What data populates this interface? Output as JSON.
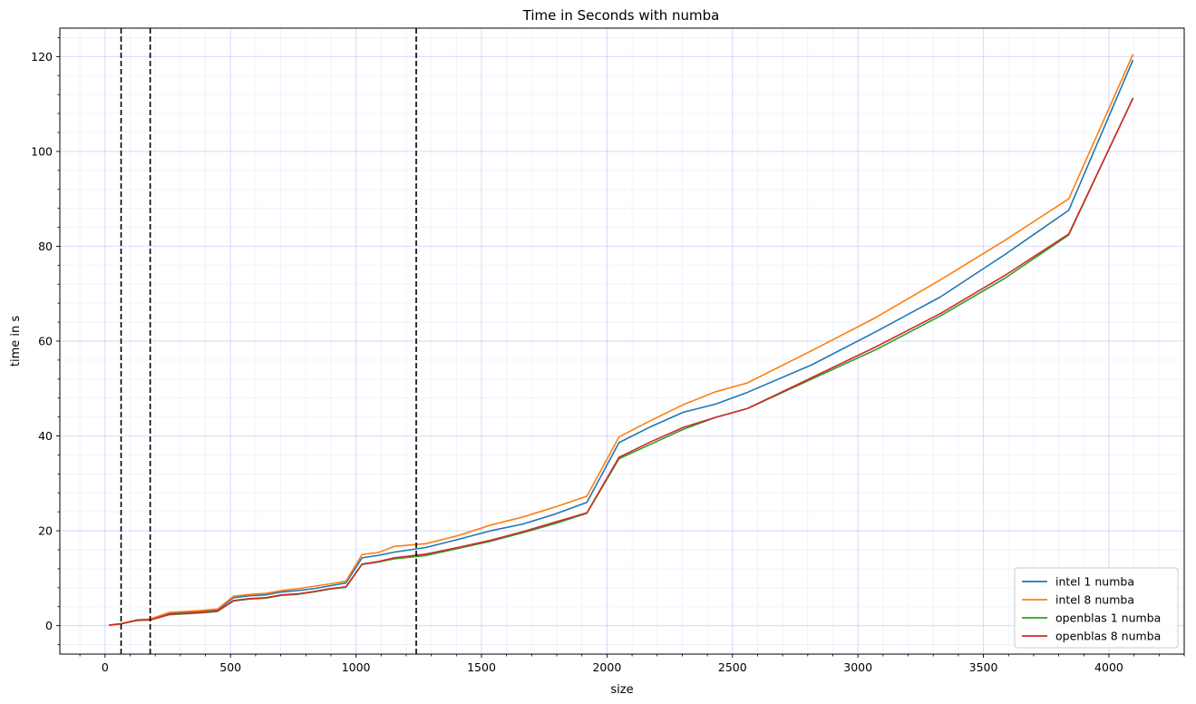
{
  "chart_data": {
    "type": "line",
    "title": "Time in Seconds with numba",
    "xlabel": "size",
    "ylabel": "time in s",
    "xlim": [
      -180,
      4300
    ],
    "ylim": [
      -6,
      126
    ],
    "xticks": [
      0,
      500,
      1000,
      1500,
      2000,
      2500,
      3000,
      3500,
      4000
    ],
    "yticks": [
      0,
      20,
      40,
      60,
      80,
      100,
      120
    ],
    "grid": true,
    "minor_grid": true,
    "legend_position": "lower-right",
    "vlines": [
      64,
      180,
      1240
    ],
    "x": [
      16,
      64,
      128,
      180,
      256,
      384,
      448,
      512,
      576,
      640,
      704,
      768,
      832,
      896,
      960,
      1024,
      1088,
      1152,
      1280,
      1408,
      1536,
      1664,
      1792,
      1920,
      2048,
      2176,
      2304,
      2432,
      2560,
      2816,
      3072,
      3328,
      3584,
      3840,
      4096
    ],
    "series": [
      {
        "name": "intel 1 numba",
        "color": "#1f77b4",
        "values": [
          0.1,
          0.4,
          1.1,
          1.3,
          2.6,
          3.0,
          3.3,
          5.9,
          6.3,
          6.5,
          7.1,
          7.4,
          7.8,
          8.4,
          9.0,
          14.3,
          14.8,
          15.5,
          16.5,
          18.2,
          20.0,
          21.4,
          23.5,
          26.0,
          38.6,
          42.0,
          45.0,
          46.7,
          49.2,
          55.0,
          62.0,
          69.3,
          78.2,
          87.6,
          119.3
        ]
      },
      {
        "name": "intel 8 numba",
        "color": "#ff7f0e",
        "values": [
          0.1,
          0.4,
          1.2,
          1.4,
          2.8,
          3.2,
          3.5,
          6.2,
          6.6,
          6.8,
          7.4,
          7.8,
          8.3,
          8.8,
          9.4,
          15.0,
          15.4,
          16.7,
          17.3,
          19.0,
          21.2,
          22.9,
          25.0,
          27.3,
          39.8,
          43.3,
          46.6,
          49.3,
          51.2,
          58.0,
          65.0,
          72.9,
          81.2,
          90.0,
          120.5
        ]
      },
      {
        "name": "openblas 1 numba",
        "color": "#2ca02c",
        "values": [
          0.1,
          0.4,
          1.1,
          1.2,
          2.3,
          2.7,
          3.0,
          5.2,
          5.6,
          5.8,
          6.4,
          6.6,
          7.1,
          7.7,
          8.1,
          12.9,
          13.4,
          14.1,
          14.8,
          16.3,
          17.8,
          19.6,
          21.5,
          23.7,
          35.2,
          38.3,
          41.4,
          43.9,
          45.8,
          52.0,
          58.2,
          65.3,
          73.2,
          82.4,
          111.3
        ]
      },
      {
        "name": "openblas 8 numba",
        "color": "#d62728",
        "values": [
          0.1,
          0.4,
          1.2,
          1.2,
          2.4,
          2.8,
          3.1,
          5.3,
          5.7,
          5.9,
          6.5,
          6.7,
          7.2,
          7.8,
          8.2,
          13.0,
          13.5,
          14.3,
          15.1,
          16.5,
          18.0,
          19.8,
          21.8,
          23.8,
          35.5,
          38.8,
          41.8,
          43.9,
          45.8,
          52.3,
          58.8,
          65.8,
          73.8,
          82.6,
          111.2
        ]
      }
    ]
  }
}
